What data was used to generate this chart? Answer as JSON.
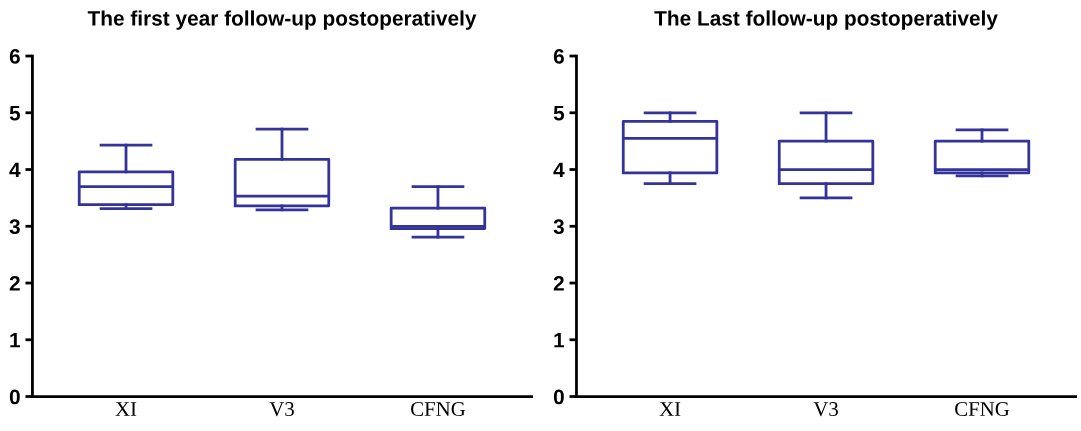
{
  "chart_data": [
    {
      "type": "box",
      "title": "The first year follow-up postoperatively",
      "categories": [
        "XI",
        "V3",
        "CFNG"
      ],
      "color": "#333399",
      "ylim": [
        0,
        6
      ],
      "yticks": [
        0,
        1,
        2,
        3,
        4,
        5,
        6
      ],
      "grid": false,
      "legend": false,
      "boxes": [
        {
          "low": 3.31,
          "q1": 3.38,
          "median": 3.7,
          "q3": 3.96,
          "high": 4.43
        },
        {
          "low": 3.29,
          "q1": 3.36,
          "median": 3.53,
          "q3": 4.18,
          "high": 4.71
        },
        {
          "low": 2.81,
          "q1": 2.96,
          "median": 3.0,
          "q3": 3.32,
          "high": 3.7
        }
      ]
    },
    {
      "type": "box",
      "title": "The Last follow-up postoperatively",
      "categories": [
        "XI",
        "V3",
        "CFNG"
      ],
      "color": "#333399",
      "ylim": [
        0,
        6
      ],
      "yticks": [
        0,
        1,
        2,
        3,
        4,
        5,
        6
      ],
      "grid": false,
      "legend": false,
      "boxes": [
        {
          "low": 3.75,
          "q1": 3.94,
          "median": 4.55,
          "q3": 4.85,
          "high": 5.0
        },
        {
          "low": 3.5,
          "q1": 3.75,
          "median": 4.0,
          "q3": 4.5,
          "high": 5.0
        },
        {
          "low": 3.89,
          "q1": 3.94,
          "median": 4.0,
          "q3": 4.5,
          "high": 4.7
        }
      ]
    }
  ]
}
